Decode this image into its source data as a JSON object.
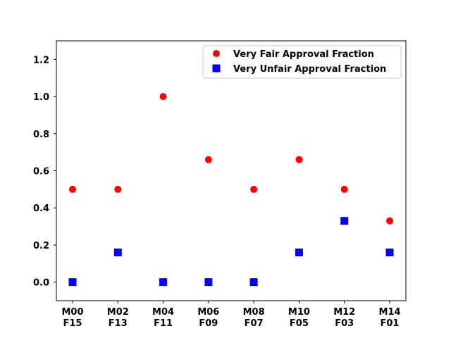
{
  "chart_data": {
    "type": "scatter",
    "title": "",
    "xlabel": "",
    "ylabel": "",
    "categories": [
      [
        "M00",
        "F15"
      ],
      [
        "M02",
        "F13"
      ],
      [
        "M04",
        "F11"
      ],
      [
        "M06",
        "F09"
      ],
      [
        "M08",
        "F07"
      ],
      [
        "M10",
        "F05"
      ],
      [
        "M12",
        "F03"
      ],
      [
        "M14",
        "F01"
      ]
    ],
    "ylim": [
      -0.1,
      1.3
    ],
    "yticks": [
      "0.0",
      "0.2",
      "0.4",
      "0.6",
      "0.8",
      "1.0",
      "1.2"
    ],
    "grid": false,
    "legend_position": "top-right",
    "series": [
      {
        "name": "Very Fair Approval Fraction",
        "marker": "circle",
        "color": "#ff0000",
        "values": [
          0.5,
          0.5,
          1.0,
          0.66,
          0.5,
          0.66,
          0.5,
          0.33
        ]
      },
      {
        "name": "Very Unfair Approval Fraction",
        "marker": "square",
        "color": "#0000ff",
        "values": [
          0.0,
          0.16,
          0.0,
          0.0,
          0.0,
          0.16,
          0.33,
          0.16
        ]
      }
    ]
  }
}
